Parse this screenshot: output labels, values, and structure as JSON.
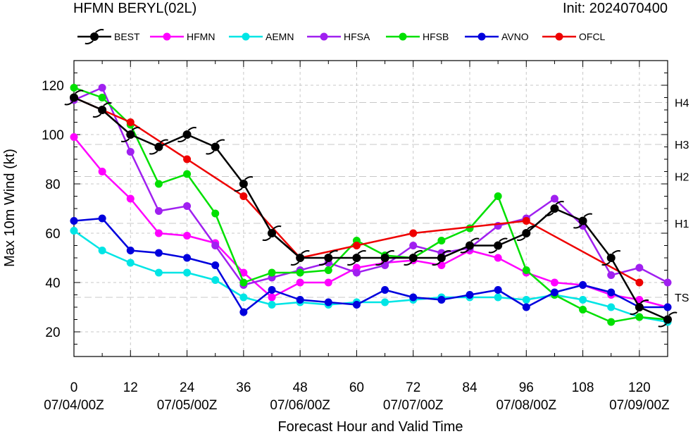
{
  "header": {
    "title": "HFMN BERYL(02L)",
    "init": "Init: 2024070400"
  },
  "chart_data": {
    "type": "line",
    "xlabel": "Forecast Hour and Valid Time",
    "ylabel": "Max 10m Wind (kt)",
    "xlim": [
      0,
      126
    ],
    "ylim": [
      10,
      130
    ],
    "xticks": [
      0,
      12,
      24,
      36,
      48,
      60,
      72,
      84,
      96,
      108,
      120
    ],
    "yticks": [
      20,
      40,
      60,
      80,
      100,
      120
    ],
    "date_ticks": [
      {
        "x": 0,
        "label": "07/04/00Z"
      },
      {
        "x": 24,
        "label": "07/05/00Z"
      },
      {
        "x": 48,
        "label": "07/06/00Z"
      },
      {
        "x": 72,
        "label": "07/07/00Z"
      },
      {
        "x": 96,
        "label": "07/08/00Z"
      },
      {
        "x": 120,
        "label": "07/09/00Z"
      }
    ],
    "thresholds": [
      {
        "label": "TS",
        "value": 34
      },
      {
        "label": "H1",
        "value": 64
      },
      {
        "label": "H2",
        "value": 83
      },
      {
        "label": "H3",
        "value": 96
      },
      {
        "label": "H4",
        "value": 113
      }
    ],
    "legend_position": "top",
    "series": [
      {
        "name": "BEST",
        "color": "#000000",
        "marker": "hurricane",
        "x": [
          0,
          6,
          12,
          18,
          24,
          30,
          36,
          42,
          48,
          54,
          60,
          66,
          72,
          78,
          84,
          90,
          96,
          102,
          108,
          114,
          120,
          126
        ],
        "values": [
          115,
          110,
          100,
          95,
          100,
          95,
          80,
          60,
          50,
          50,
          50,
          50,
          50,
          50,
          55,
          55,
          60,
          70,
          65,
          50,
          30,
          25
        ]
      },
      {
        "name": "HFMN",
        "color": "#ff00ff",
        "marker": "dot",
        "x": [
          0,
          6,
          12,
          18,
          24,
          30,
          36,
          42,
          48,
          54,
          60,
          66,
          72,
          78,
          84,
          90,
          96,
          102,
          108,
          114,
          120,
          126
        ],
        "values": [
          99,
          85,
          74,
          60,
          59,
          56,
          44,
          34,
          40,
          40,
          46,
          48,
          49,
          47,
          53,
          50,
          44,
          40,
          39,
          35,
          33,
          30
        ]
      },
      {
        "name": "AEMN",
        "color": "#00e5e5",
        "marker": "dot",
        "x": [
          0,
          6,
          12,
          18,
          24,
          30,
          36,
          42,
          48,
          54,
          60,
          66,
          72,
          78,
          84,
          90,
          96,
          102,
          108,
          114,
          120,
          126
        ],
        "values": [
          61,
          53,
          48,
          44,
          44,
          41,
          34,
          31,
          32,
          31,
          32,
          32,
          33,
          34,
          34,
          34,
          33,
          35,
          33,
          30,
          26,
          24
        ]
      },
      {
        "name": "HFSA",
        "color": "#a020f0",
        "marker": "dot",
        "x": [
          0,
          6,
          12,
          18,
          24,
          30,
          36,
          42,
          48,
          54,
          60,
          66,
          72,
          78,
          84,
          90,
          96,
          102,
          108,
          114,
          120,
          126
        ],
        "values": [
          114,
          119,
          93,
          69,
          71,
          55,
          39,
          42,
          45,
          48,
          44,
          47,
          55,
          52,
          54,
          63,
          66,
          74,
          63,
          43,
          46,
          40
        ]
      },
      {
        "name": "HFSB",
        "color": "#00e000",
        "marker": "dot",
        "x": [
          0,
          6,
          12,
          18,
          24,
          30,
          36,
          42,
          48,
          54,
          60,
          66,
          72,
          78,
          84,
          90,
          96,
          102,
          108,
          114,
          120,
          126
        ],
        "values": [
          119,
          115,
          104,
          80,
          84,
          68,
          40,
          44,
          44,
          45,
          57,
          51,
          50,
          57,
          62,
          75,
          45,
          35,
          29,
          24,
          26,
          25
        ]
      },
      {
        "name": "AVNO",
        "color": "#0000dd",
        "marker": "dot",
        "x": [
          0,
          6,
          12,
          18,
          24,
          30,
          36,
          42,
          48,
          54,
          60,
          66,
          72,
          78,
          84,
          90,
          96,
          102,
          108,
          114,
          120,
          126
        ],
        "values": [
          65,
          66,
          53,
          52,
          50,
          47,
          28,
          37,
          33,
          32,
          31,
          37,
          34,
          33,
          35,
          37,
          30,
          36,
          39,
          36,
          30,
          30
        ]
      },
      {
        "name": "OFCL",
        "color": "#ee0000",
        "marker": "dot",
        "x": [
          0,
          12,
          24,
          36,
          48,
          60,
          72,
          96,
          120
        ],
        "values": [
          115,
          105,
          90,
          75,
          50,
          55,
          60,
          65,
          40
        ]
      }
    ]
  }
}
